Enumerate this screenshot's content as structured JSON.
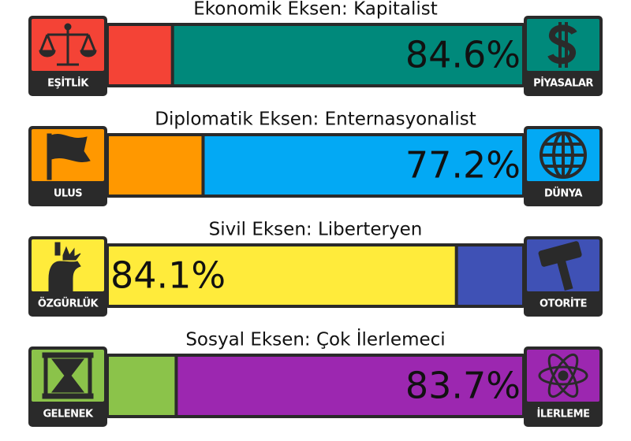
{
  "xlim": [
    0,
    100
  ],
  "axes": [
    {
      "title": "Ekonomik Eksen: Kapitalist",
      "left_label": "EŞİTLİK",
      "right_label": "PİYASALAR",
      "left_color": "#f44336",
      "right_color": "#00897b",
      "side": "right",
      "value": 84.6,
      "value_label": "84.6%"
    },
    {
      "title": "Diplomatik Eksen: Enternasyonalist",
      "left_label": "ULUS",
      "right_label": "DÜNYA",
      "left_color": "#ff9800",
      "right_color": "#03a9f4",
      "side": "right",
      "value": 77.2,
      "value_label": "77.2%"
    },
    {
      "title": "Sivil Eksen: Liberteryen",
      "left_label": "ÖZGÜRLÜK",
      "right_label": "OTORİTE",
      "left_color": "#ffeb3b",
      "right_color": "#3f51b5",
      "side": "left",
      "value": 84.1,
      "value_label": "84.1%"
    },
    {
      "title": "Sosyal Eksen: Çok İlerlemeci",
      "left_label": "GELENEK",
      "right_label": "İLERLEME",
      "left_color": "#8bc34a",
      "right_color": "#9c27b0",
      "side": "right",
      "value": 83.7,
      "value_label": "83.7%"
    }
  ]
}
